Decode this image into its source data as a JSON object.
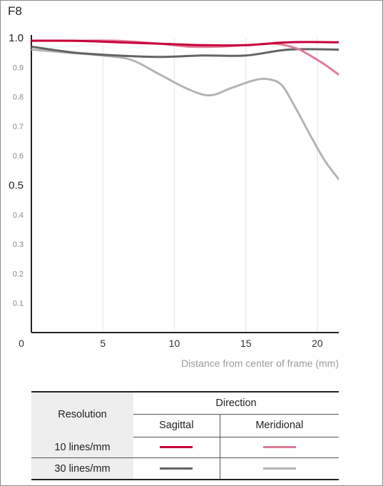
{
  "chart_data": {
    "type": "line",
    "title": "F8",
    "xlabel": "Distance from center of frame (mm)",
    "ylabel": "",
    "xlim": [
      0,
      21.5
    ],
    "ylim": [
      0,
      1.0
    ],
    "x_ticks": [
      0,
      5,
      10,
      15,
      20
    ],
    "y_ticks": [
      0.1,
      0.2,
      0.3,
      0.4,
      0.5,
      0.6,
      0.7,
      0.8,
      0.9,
      1.0
    ],
    "y_tick_labels": [
      "0.1",
      "0.2",
      "0.3",
      "0.4",
      "0.5",
      "0.6",
      "0.7",
      "0.8",
      "0.9",
      "1.0"
    ],
    "grid": "vertical",
    "series": [
      {
        "name": "10 lines/mm Sagittal",
        "color": "#c8003c",
        "x": [
          0,
          3,
          6,
          9,
          12,
          15,
          18,
          21.5
        ],
        "y": [
          0.99,
          0.99,
          0.985,
          0.98,
          0.975,
          0.975,
          0.985,
          0.985
        ]
      },
      {
        "name": "10 lines/mm Meridional",
        "color": "#e07d96",
        "x": [
          0,
          3,
          6,
          9,
          11,
          13,
          15,
          17,
          18.5,
          19.5,
          20.5,
          21.5
        ],
        "y": [
          0.99,
          0.99,
          0.99,
          0.98,
          0.97,
          0.97,
          0.975,
          0.98,
          0.965,
          0.94,
          0.91,
          0.875
        ]
      },
      {
        "name": "30 lines/mm Sagittal",
        "color": "#646464",
        "x": [
          0,
          3,
          6,
          9,
          12,
          15,
          18,
          21.5
        ],
        "y": [
          0.97,
          0.95,
          0.94,
          0.935,
          0.94,
          0.94,
          0.96,
          0.96
        ]
      },
      {
        "name": "30 lines/mm Meridional",
        "color": "#b4b4b4",
        "x": [
          0,
          2.5,
          5,
          7,
          9,
          11,
          12.5,
          14,
          15.5,
          16.5,
          17.5,
          18.5,
          19.5,
          20.5,
          21.5
        ],
        "y": [
          0.96,
          0.95,
          0.94,
          0.925,
          0.875,
          0.825,
          0.805,
          0.83,
          0.855,
          0.86,
          0.84,
          0.76,
          0.67,
          0.585,
          0.52
        ]
      }
    ]
  },
  "legend": {
    "resolution_header": "Resolution",
    "direction_header": "Direction",
    "sagittal_header": "Sagittal",
    "meridional_header": "Meridional",
    "rows": [
      {
        "label": "10 lines/mm",
        "sagittal_color": "#c8003c",
        "meridional_color": "#e07d96"
      },
      {
        "label": "30 lines/mm",
        "sagittal_color": "#646464",
        "meridional_color": "#b4b4b4"
      }
    ]
  }
}
